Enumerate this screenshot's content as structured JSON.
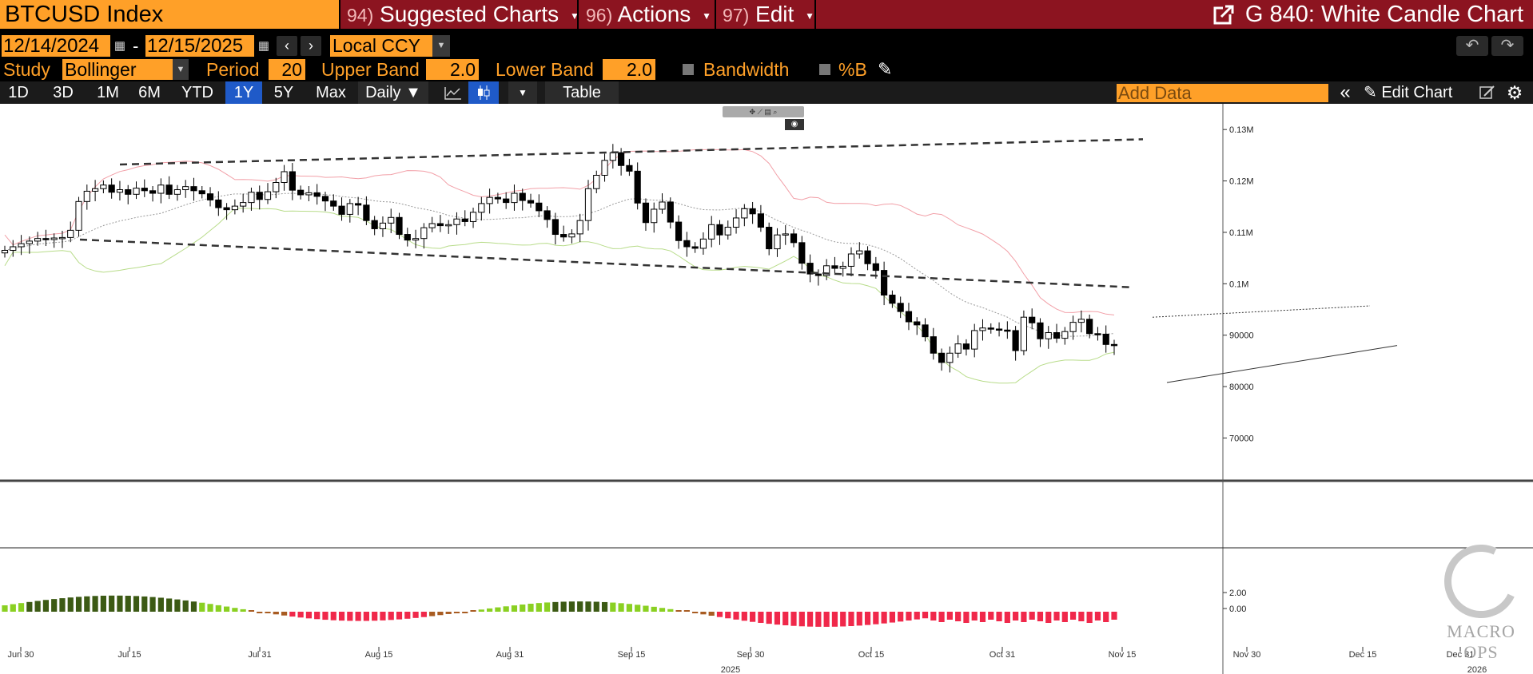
{
  "header": {
    "ticker": "BTCUSD Index",
    "menus": [
      {
        "num": "94)",
        "label": "Suggested Charts"
      },
      {
        "num": "96)",
        "label": "Actions"
      },
      {
        "num": "97)",
        "label": "Edit"
      }
    ],
    "chart_title": "G 840: White Candle Chart"
  },
  "date_bar": {
    "start_date": "12/14/2024",
    "separator": "-",
    "end_date": "12/15/2025",
    "currency": "Local CCY"
  },
  "study_bar": {
    "study_label": "Study",
    "study_value": "Bollinger",
    "period_label": "Period",
    "period_value": "20",
    "upper_label": "Upper Band",
    "upper_value": "2.0",
    "lower_label": "Lower Band",
    "lower_value": "2.0",
    "bandwidth_label": "Bandwidth",
    "pctb_label": "%B"
  },
  "toolbar": {
    "ranges": [
      "1D",
      "3D",
      "1M",
      "6M",
      "YTD",
      "1Y",
      "5Y",
      "Max"
    ],
    "active_range": "1Y",
    "frequency": "Daily ▼",
    "table_label": "Table",
    "add_data_placeholder": "Add Data",
    "edit_chart_label": "Edit Chart"
  },
  "watermark": "MACRO OPS",
  "colors": {
    "orange": "#ffa028",
    "header_red": "#8c1420",
    "active_blue": "#1f5ac8",
    "upper_band": "#f2a0a8",
    "lower_band": "#b8dc8a",
    "osc_bright_green": "#8ad022",
    "osc_dark_green": "#3c5a14",
    "osc_brown": "#a85c22",
    "osc_red": "#f0284a"
  },
  "chart_data": {
    "type": "candlestick",
    "study": "Bollinger",
    "y_ticks": [
      "0.13M",
      "0.12M",
      "0.11M",
      "0.1M",
      "90000",
      "80000",
      "70000"
    ],
    "y_tick_values": [
      130000,
      120000,
      110000,
      100000,
      90000,
      80000,
      70000
    ],
    "x_ticks": [
      "Jun 30",
      "Jul 15",
      "Jul 31",
      "Aug 15",
      "Aug 31",
      "Sep 15",
      "Sep 30",
      "Oct 15",
      "Oct 31",
      "Nov 15",
      "Nov 30",
      "Dec 15",
      "Dec 31"
    ],
    "year_labels": [
      "2025",
      "2026"
    ],
    "ylim": [
      62000,
      135000
    ],
    "lower_panel_ticks": [
      "2.00",
      "0.00"
    ],
    "closes": [
      106500,
      107200,
      107800,
      108300,
      108800,
      108600,
      108900,
      109000,
      110400,
      116000,
      118000,
      118500,
      119200,
      117800,
      118300,
      117400,
      118600,
      118100,
      117600,
      119200,
      117400,
      118300,
      118900,
      118100,
      117500,
      116300,
      114800,
      114400,
      115100,
      115800,
      117800,
      116400,
      117900,
      119700,
      121800,
      118200,
      117300,
      117700,
      117000,
      116100,
      115100,
      113500,
      115600,
      115300,
      112300,
      110700,
      111800,
      112900,
      109600,
      108500,
      108800,
      110900,
      111700,
      111300,
      111500,
      112600,
      112100,
      113900,
      115600,
      116800,
      116500,
      115800,
      117600,
      116200,
      115700,
      114200,
      112500,
      109600,
      109100,
      109700,
      112300,
      118500,
      121100,
      124000,
      125500,
      123000,
      121900,
      115700,
      111900,
      114500,
      115900,
      112000,
      108400,
      107200,
      106900,
      108700,
      111500,
      109500,
      111000,
      112800,
      114600,
      113600,
      111000,
      106800,
      109500,
      109700,
      108000,
      104000,
      101900,
      101600,
      103500,
      103000,
      103400,
      105800,
      106400,
      103900,
      102600,
      97800,
      96200,
      94600,
      92600,
      92000,
      89700,
      86500,
      84700,
      86500,
      88300,
      87300,
      90900,
      91400,
      91200,
      91000,
      90900,
      87000,
      93500,
      92400,
      89300,
      90500,
      89400,
      90700,
      92500,
      93100,
      90300,
      90200,
      88200,
      88100
    ]
  }
}
